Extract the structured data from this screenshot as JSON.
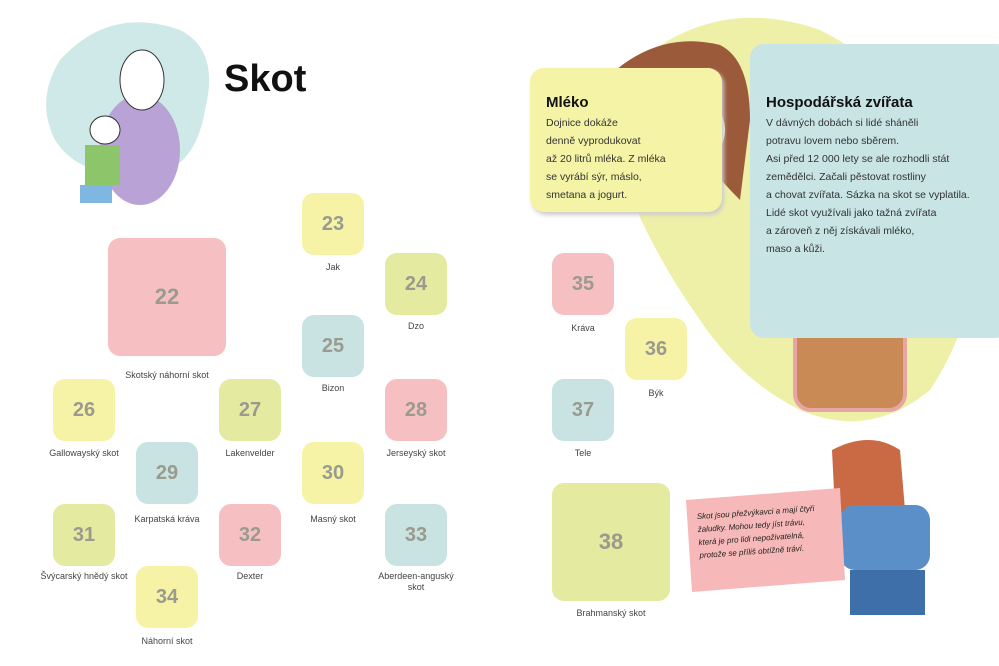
{
  "header": {
    "title": "Skot"
  },
  "tiles": [
    {
      "number": "22",
      "label": "Skotský náhorní skot"
    },
    {
      "number": "23",
      "label": "Jak"
    },
    {
      "number": "24",
      "label": "Dzo"
    },
    {
      "number": "25",
      "label": "Bizon"
    },
    {
      "number": "26",
      "label": "Gallowayský skot"
    },
    {
      "number": "27",
      "label": "Lakenvelder"
    },
    {
      "number": "28",
      "label": "Jerseyský skot"
    },
    {
      "number": "29",
      "label": "Karpatská kráva"
    },
    {
      "number": "30",
      "label": "Masný skot"
    },
    {
      "number": "31",
      "label": "Švýcarský hnědý skot"
    },
    {
      "number": "32",
      "label": "Dexter"
    },
    {
      "number": "33",
      "label": "Aberdeen-anguský skot"
    },
    {
      "number": "34",
      "label": "Náhorní skot"
    },
    {
      "number": "35",
      "label": "Kráva"
    },
    {
      "number": "36",
      "label": "Býk"
    },
    {
      "number": "37",
      "label": "Tele"
    },
    {
      "number": "38",
      "label": "Brahmanský skot"
    }
  ],
  "milk_box": {
    "title": "Mléko",
    "lines": [
      "Dojnice dokáže",
      "denně vyprodukovat",
      "až 20 litrů mléka. Z mléka",
      "se vyrábí sýr, máslo,",
      "smetana a jogurt."
    ]
  },
  "farm_box": {
    "title": "Hospodářská zvířata",
    "lines": [
      "V dávných dobách si lidé sháněli",
      "potravu lovem nebo sběrem.",
      "Asi před 12 000 lety se ale rozhodli stát",
      "zemědělci. Začali pěstovat rostliny",
      "a chovat zvířata. Sázka na skot se vyplatila.",
      "Lidé skot využívali jako tažná zvířata",
      "a zároveň z něj získávali mléko,",
      "maso a kůži."
    ]
  },
  "speech_bubble": {
    "lines": [
      "Skot jsou přežvýkavci a mají čtyři",
      "žaludky. Mohou tedy jíst trávu,",
      "která je pro lidi nepoživatelná,",
      "protože se příliš obtížně tráví."
    ]
  }
}
